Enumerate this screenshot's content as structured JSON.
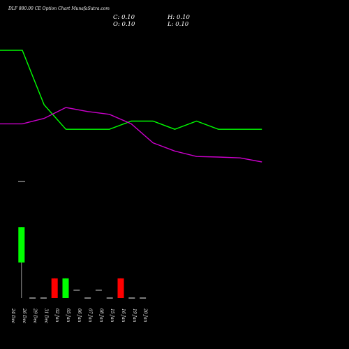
{
  "header": {
    "title": "DLF 880.00  CE Option  Chart MunafaSutra.com",
    "close": "C: 0.10",
    "open": "O: 0.10",
    "high": "H: 0.10",
    "low": "L: 0.10"
  },
  "chart_data": {
    "type": "candlestick",
    "categories": [
      "24 Dec",
      "26 Dec",
      "29 Dec",
      "31 Dec",
      "02 Jan",
      "05 Jan",
      "06 Jan",
      "07 Jan",
      "08 Jan",
      "15 Jan",
      "16 Jan",
      "19 Jan",
      "20 Jan"
    ],
    "series": [
      {
        "kind": "ohlc",
        "open": [
          null,
          0.55,
          0.1,
          0.1,
          0.35,
          0.1,
          0.2,
          0.1,
          0.2,
          0.1,
          0.35,
          0.1,
          0.1
        ],
        "close": [
          null,
          1.0,
          0.1,
          0.1,
          0.1,
          0.35,
          0.2,
          0.1,
          0.2,
          0.1,
          0.1,
          0.1,
          0.1
        ],
        "high": [
          null,
          1.0,
          0.1,
          0.1,
          0.35,
          0.35,
          0.2,
          0.1,
          0.2,
          0.1,
          0.35,
          0.1,
          0.1
        ],
        "low": [
          null,
          0.1,
          0.1,
          0.1,
          0.1,
          0.1,
          0.2,
          0.1,
          0.2,
          0.1,
          0.1,
          0.1,
          0.1
        ]
      },
      {
        "kind": "line",
        "color": "#00ff00",
        "values": [
          4.1,
          4.1,
          2.1,
          1.2,
          1.2,
          1.2,
          1.5,
          1.5,
          1.2,
          1.5,
          1.2,
          1.2,
          1.2
        ]
      },
      {
        "kind": "line",
        "color": "#cc00cc",
        "values": [
          1.4,
          1.4,
          1.6,
          2.0,
          1.85,
          1.75,
          1.4,
          0.7,
          0.4,
          0.2,
          0.18,
          0.15,
          0.0
        ]
      }
    ],
    "prior_marker": {
      "color": "#cccccc"
    },
    "colors": {
      "up": "#00ff00",
      "down": "#ff0000",
      "flat": "#cccccc",
      "background": "#000000"
    }
  }
}
